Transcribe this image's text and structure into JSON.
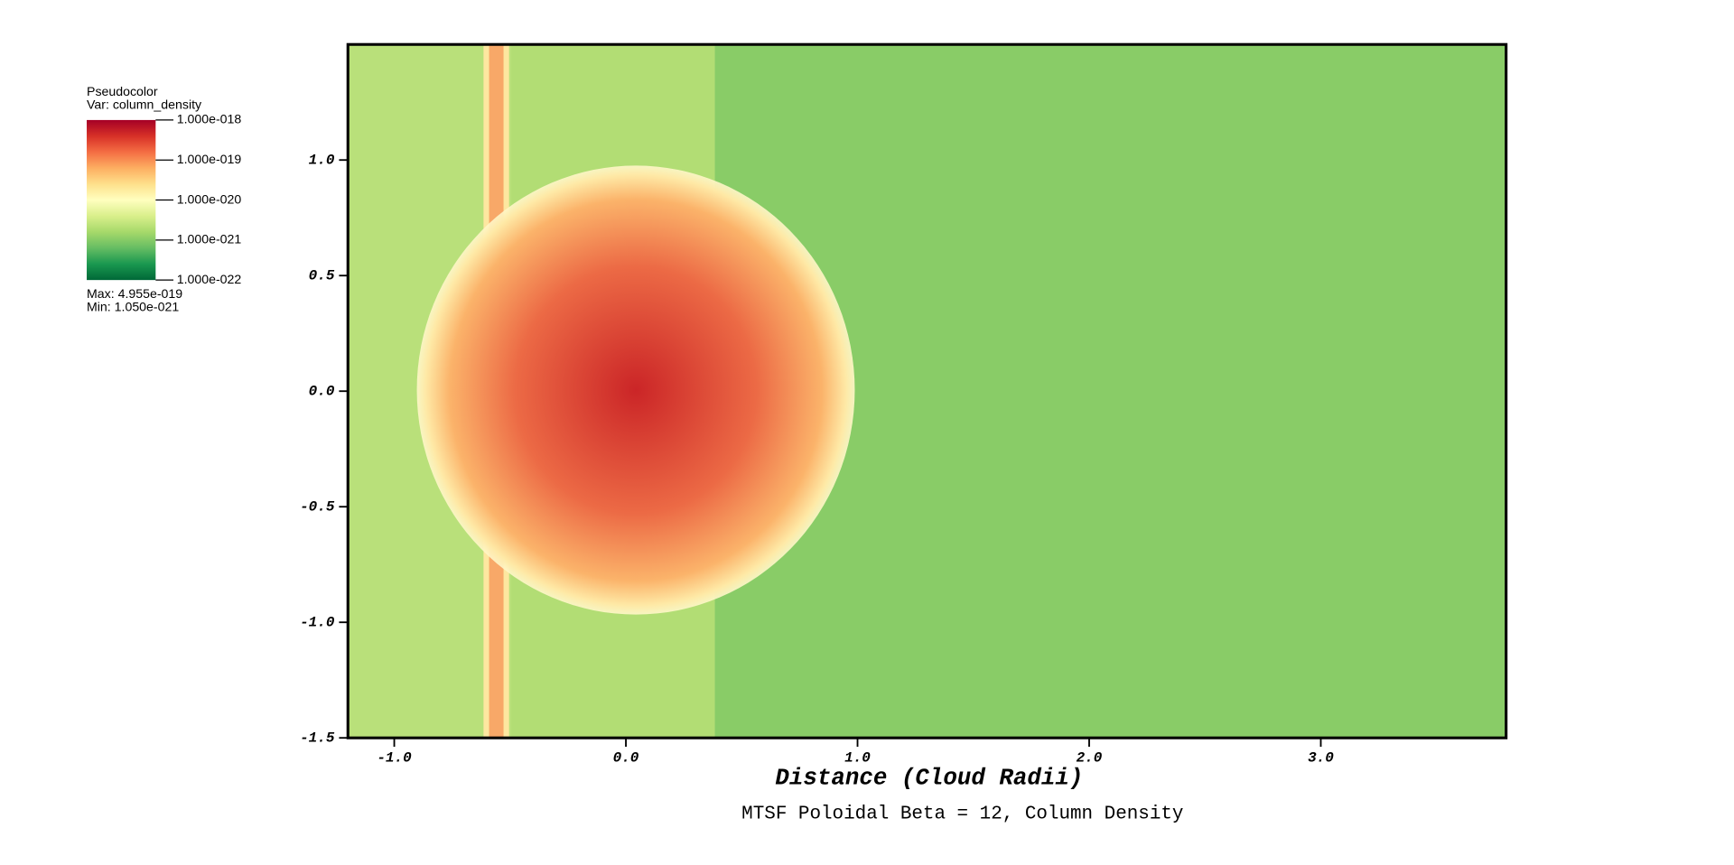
{
  "chart_data": {
    "type": "pseudocolor",
    "title": "MTSF Poloidal Beta = 12, Column Density",
    "x_label": "Distance (Cloud Radii)",
    "xlim": [
      -1.2,
      3.8
    ],
    "ylim": [
      -1.5,
      1.5
    ],
    "xticks": [
      {
        "value": -1,
        "label": "-1.0"
      },
      {
        "value": 0,
        "label": "0.0"
      },
      {
        "value": 1,
        "label": "1.0"
      },
      {
        "value": 2,
        "label": "2.0"
      },
      {
        "value": 3,
        "label": "3.0"
      }
    ],
    "yticks": [
      -1.5,
      {
        "value": -1,
        "label": "-1.0"
      },
      -0.5,
      {
        "value": 0,
        "label": "0.0"
      },
      0.5,
      {
        "value": 1,
        "label": "1.0"
      }
    ],
    "log_scale_colorbar": true,
    "colormap": [
      "#006837",
      "#1a9850",
      "#66bd63",
      "#a6d96a",
      "#d9ef8b",
      "#ffffbf",
      "#fee08b",
      "#fdae61",
      "#f46d43",
      "#d73027",
      "#a50026"
    ],
    "legend": {
      "title": "Pseudocolor",
      "variable": "Var: column_density",
      "max": {
        "value": 4.955e-19,
        "label": "Max:  4.955e-019"
      },
      "min": {
        "value": 1.05e-21,
        "label": "Min:  1.050e-021"
      },
      "colorbar_lim": [
        1e-22,
        1e-18
      ],
      "colorbar_ticks": [
        {
          "value": 1e-18,
          "label": "1.000e-018"
        },
        {
          "value": 1e-19,
          "label": "1.000e-019"
        },
        {
          "value": 1e-20,
          "label": "1.000e-020"
        },
        {
          "value": 1e-21,
          "label": "1.000e-021"
        },
        {
          "value": 1e-22,
          "label": "1.000e-022"
        }
      ]
    }
  }
}
